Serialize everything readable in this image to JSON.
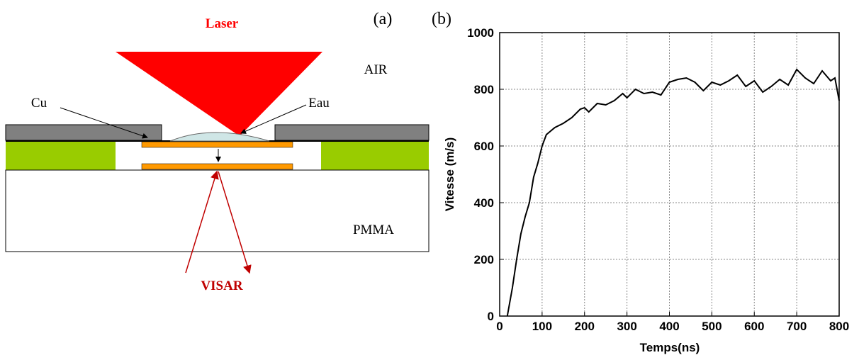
{
  "diagram": {
    "panel_a": "(a)",
    "panel_b": "(b)",
    "laser": "Laser",
    "air": "AIR",
    "cu": "Cu",
    "eau": "Eau",
    "pmma": "PMMA",
    "visar": "VISAR"
  },
  "chart_data": {
    "type": "line",
    "xlabel": "Temps(ns)",
    "ylabel": "Vitesse (m/s)",
    "x": [
      18,
      30,
      40,
      50,
      60,
      70,
      80,
      90,
      100,
      110,
      130,
      150,
      170,
      190,
      200,
      210,
      230,
      250,
      270,
      290,
      300,
      320,
      340,
      360,
      380,
      400,
      420,
      440,
      460,
      480,
      500,
      520,
      540,
      560,
      580,
      600,
      620,
      640,
      660,
      680,
      700,
      720,
      740,
      760,
      780,
      790,
      800
    ],
    "series": [
      {
        "name": "Vitesse",
        "color": "#000000",
        "values": [
          0,
          100,
          200,
          290,
          350,
          400,
          490,
          540,
          600,
          640,
          665,
          680,
          700,
          730,
          735,
          720,
          750,
          745,
          760,
          785,
          770,
          800,
          785,
          790,
          780,
          825,
          835,
          840,
          825,
          795,
          825,
          815,
          830,
          850,
          810,
          830,
          790,
          810,
          835,
          815,
          870,
          840,
          820,
          865,
          830,
          840,
          760
        ]
      }
    ],
    "xlim": [
      0,
      800
    ],
    "ylim": [
      0,
      1000
    ],
    "xticks": [
      0,
      100,
      200,
      300,
      400,
      500,
      600,
      700,
      800
    ],
    "yticks": [
      0,
      200,
      400,
      600,
      800,
      1000
    ],
    "grid": true
  }
}
